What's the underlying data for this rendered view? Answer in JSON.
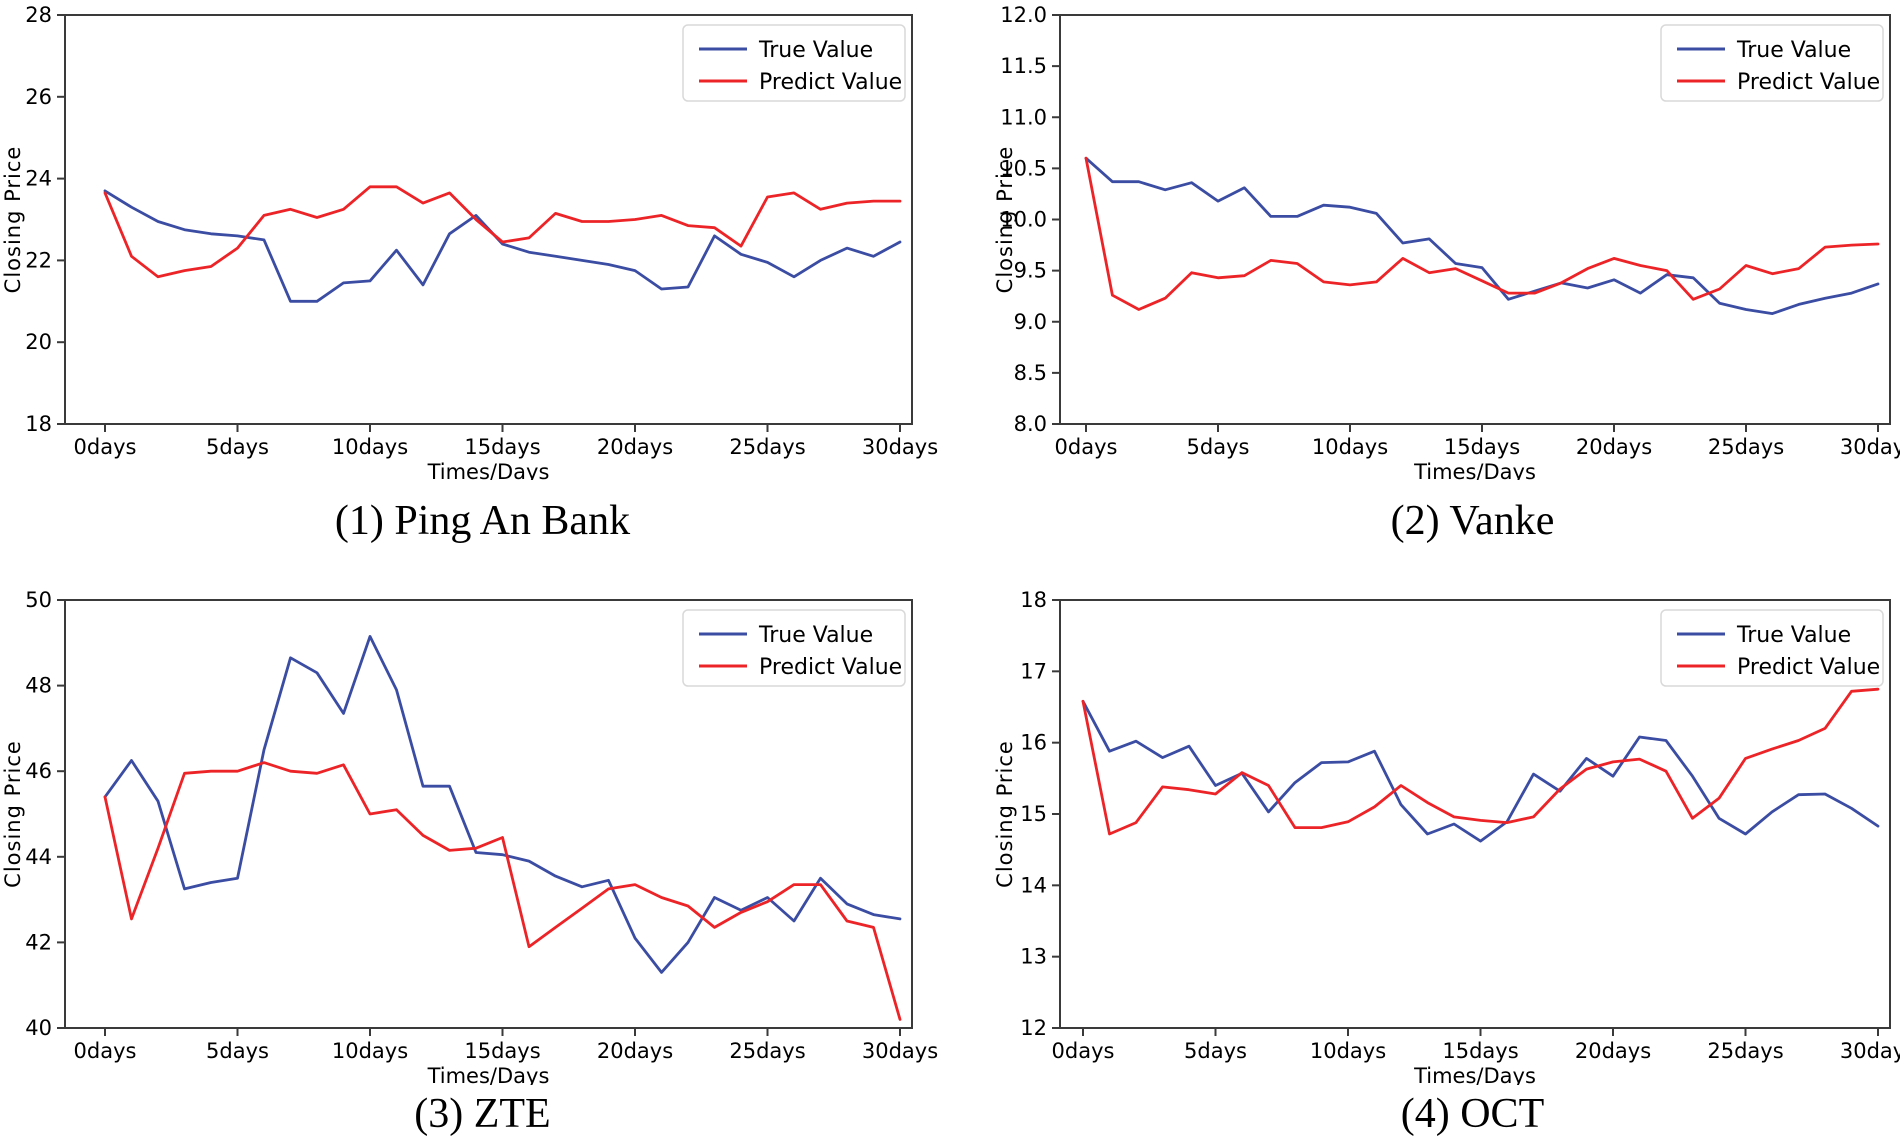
{
  "page": {
    "background": "#ffffff"
  },
  "colors": {
    "true_line": "#3b4ca3",
    "predict_line": "#ec2428",
    "axis": "#3a3a3a",
    "text": "#000000",
    "legend_border": "#d9d9d9",
    "legend_bg": "#ffffff"
  },
  "legend": {
    "true_label": "True Value",
    "predict_label": "Predict Value",
    "position": "upper right"
  },
  "chart_data": [
    {
      "type": "line",
      "title": "(1) Ping An Bank",
      "xlabel": "Times/Days",
      "ylabel": "Closing Price",
      "x": [
        0,
        1,
        2,
        3,
        4,
        5,
        6,
        7,
        8,
        9,
        10,
        11,
        12,
        13,
        14,
        15,
        16,
        17,
        18,
        19,
        20,
        21,
        22,
        23,
        24,
        25,
        26,
        27,
        28,
        29,
        30
      ],
      "x_tick_labels": [
        "0days",
        "5days",
        "10days",
        "15days",
        "20days",
        "25days",
        "30days"
      ],
      "x_tick_values": [
        0,
        5,
        10,
        15,
        20,
        25,
        30
      ],
      "ylim": [
        18,
        28
      ],
      "y_tick_values": [
        18,
        20,
        22,
        24,
        26,
        28
      ],
      "y_tick_labels": [
        "18",
        "20",
        "22",
        "24",
        "26",
        "28"
      ],
      "grid": false,
      "legend_position": "upper right",
      "series": [
        {
          "name": "True Value",
          "color_key": "true_line",
          "values": [
            23.7,
            23.3,
            22.95,
            22.75,
            22.65,
            22.6,
            22.5,
            21.0,
            21.0,
            21.45,
            21.5,
            22.25,
            21.4,
            22.65,
            23.1,
            22.4,
            22.2,
            22.1,
            22.0,
            21.9,
            21.75,
            21.3,
            21.35,
            22.6,
            22.15,
            21.95,
            21.6,
            22.0,
            22.3,
            22.1,
            22.45
          ]
        },
        {
          "name": "Predict Value",
          "color_key": "predict_line",
          "values": [
            23.65,
            22.1,
            21.6,
            21.75,
            21.85,
            22.3,
            23.1,
            23.25,
            23.05,
            23.25,
            23.8,
            23.8,
            23.4,
            23.65,
            23.0,
            22.45,
            22.55,
            23.15,
            22.95,
            22.95,
            23.0,
            23.1,
            22.85,
            22.8,
            22.35,
            23.55,
            23.65,
            23.25,
            23.4,
            23.45,
            23.45
          ]
        }
      ]
    },
    {
      "type": "line",
      "title": "(2) Vanke",
      "xlabel": "Times/Days",
      "ylabel": "Closing Price",
      "x": [
        0,
        1,
        2,
        3,
        4,
        5,
        6,
        7,
        8,
        9,
        10,
        11,
        12,
        13,
        14,
        15,
        16,
        17,
        18,
        19,
        20,
        21,
        22,
        23,
        24,
        25,
        26,
        27,
        28,
        29,
        30
      ],
      "x_tick_labels": [
        "0days",
        "5days",
        "10days",
        "15days",
        "20days",
        "25days",
        "30days"
      ],
      "x_tick_values": [
        0,
        5,
        10,
        15,
        20,
        25,
        30
      ],
      "ylim": [
        8.0,
        12.0
      ],
      "y_tick_values": [
        8.0,
        8.5,
        9.0,
        9.5,
        10.0,
        10.5,
        11.0,
        11.5,
        12.0
      ],
      "y_tick_labels": [
        "8.0",
        "8.5",
        "9.0",
        "9.5",
        "10.0",
        "10.5",
        "11.0",
        "11.5",
        "12.0"
      ],
      "grid": false,
      "legend_position": "upper right",
      "series": [
        {
          "name": "True Value",
          "color_key": "true_line",
          "values": [
            10.6,
            10.37,
            10.37,
            10.29,
            10.36,
            10.18,
            10.31,
            10.03,
            10.03,
            10.14,
            10.12,
            10.06,
            9.77,
            9.81,
            9.57,
            9.53,
            9.22,
            9.3,
            9.38,
            9.33,
            9.41,
            9.28,
            9.46,
            9.43,
            9.18,
            9.12,
            9.08,
            9.17,
            9.23,
            9.28,
            9.37
          ]
        },
        {
          "name": "Predict Value",
          "color_key": "predict_line",
          "values": [
            10.6,
            9.26,
            9.12,
            9.23,
            9.48,
            9.43,
            9.45,
            9.6,
            9.57,
            9.39,
            9.36,
            9.39,
            9.62,
            9.48,
            9.52,
            9.4,
            9.28,
            9.28,
            9.38,
            9.52,
            9.62,
            9.55,
            9.5,
            9.22,
            9.32,
            9.55,
            9.47,
            9.52,
            9.73,
            9.75,
            9.76
          ]
        }
      ]
    },
    {
      "type": "line",
      "title": "(3) ZTE",
      "xlabel": "Times/Days",
      "ylabel": "Closing Price",
      "x": [
        0,
        1,
        2,
        3,
        4,
        5,
        6,
        7,
        8,
        9,
        10,
        11,
        12,
        13,
        14,
        15,
        16,
        17,
        18,
        19,
        20,
        21,
        22,
        23,
        24,
        25,
        26,
        27,
        28,
        29,
        30
      ],
      "x_tick_labels": [
        "0days",
        "5days",
        "10days",
        "15days",
        "20days",
        "25days",
        "30days"
      ],
      "x_tick_values": [
        0,
        5,
        10,
        15,
        20,
        25,
        30
      ],
      "ylim": [
        40,
        50
      ],
      "y_tick_values": [
        40,
        42,
        44,
        46,
        48,
        50
      ],
      "y_tick_labels": [
        "40",
        "42",
        "44",
        "46",
        "48",
        "50"
      ],
      "grid": false,
      "legend_position": "upper right",
      "series": [
        {
          "name": "True Value",
          "color_key": "true_line",
          "values": [
            45.4,
            46.25,
            45.3,
            43.25,
            43.4,
            43.5,
            46.5,
            48.65,
            48.3,
            47.35,
            49.15,
            47.9,
            45.65,
            45.65,
            44.1,
            44.05,
            43.9,
            43.55,
            43.3,
            43.45,
            42.1,
            41.3,
            42.0,
            43.05,
            42.75,
            43.05,
            42.5,
            43.5,
            42.9,
            42.65,
            42.55
          ]
        },
        {
          "name": "Predict Value",
          "color_key": "predict_line",
          "values": [
            45.4,
            42.55,
            44.2,
            45.95,
            46.0,
            46.0,
            46.2,
            46.0,
            45.95,
            46.15,
            45.0,
            45.1,
            44.5,
            44.15,
            44.2,
            44.45,
            41.9,
            42.35,
            42.8,
            43.25,
            43.35,
            43.05,
            42.85,
            42.35,
            42.7,
            42.95,
            43.35,
            43.35,
            42.5,
            42.35,
            40.2
          ]
        }
      ]
    },
    {
      "type": "line",
      "title": "(4) OCT",
      "xlabel": "Times/Days",
      "ylabel": "Closing Price",
      "x": [
        0,
        1,
        2,
        3,
        4,
        5,
        6,
        7,
        8,
        9,
        10,
        11,
        12,
        13,
        14,
        15,
        16,
        17,
        18,
        19,
        20,
        21,
        22,
        23,
        24,
        25,
        26,
        27,
        28,
        29,
        30
      ],
      "x_tick_labels": [
        "0days",
        "5days",
        "10days",
        "15days",
        "20days",
        "25days",
        "30days"
      ],
      "x_tick_values": [
        0,
        5,
        10,
        15,
        20,
        25,
        30
      ],
      "ylim": [
        12,
        18
      ],
      "y_tick_values": [
        12,
        13,
        14,
        15,
        16,
        17,
        18
      ],
      "y_tick_labels": [
        "12",
        "13",
        "14",
        "15",
        "16",
        "17",
        "18"
      ],
      "grid": false,
      "legend_position": "upper right",
      "series": [
        {
          "name": "True Value",
          "color_key": "true_line",
          "values": [
            16.58,
            15.88,
            16.02,
            15.79,
            15.95,
            15.4,
            15.57,
            15.03,
            15.44,
            15.72,
            15.73,
            15.88,
            15.13,
            14.72,
            14.86,
            14.62,
            14.89,
            15.56,
            15.32,
            15.78,
            15.53,
            16.08,
            16.03,
            15.53,
            14.94,
            14.72,
            15.03,
            15.27,
            15.28,
            15.08,
            14.83
          ]
        },
        {
          "name": "Predict Value",
          "color_key": "predict_line",
          "values": [
            16.58,
            14.72,
            14.88,
            15.38,
            15.34,
            15.28,
            15.58,
            15.4,
            14.81,
            14.81,
            14.89,
            15.1,
            15.4,
            15.16,
            14.96,
            14.91,
            14.88,
            14.96,
            15.35,
            15.63,
            15.73,
            15.77,
            15.6,
            14.94,
            15.22,
            15.78,
            15.91,
            16.03,
            16.2,
            16.72,
            16.75
          ]
        }
      ]
    }
  ]
}
